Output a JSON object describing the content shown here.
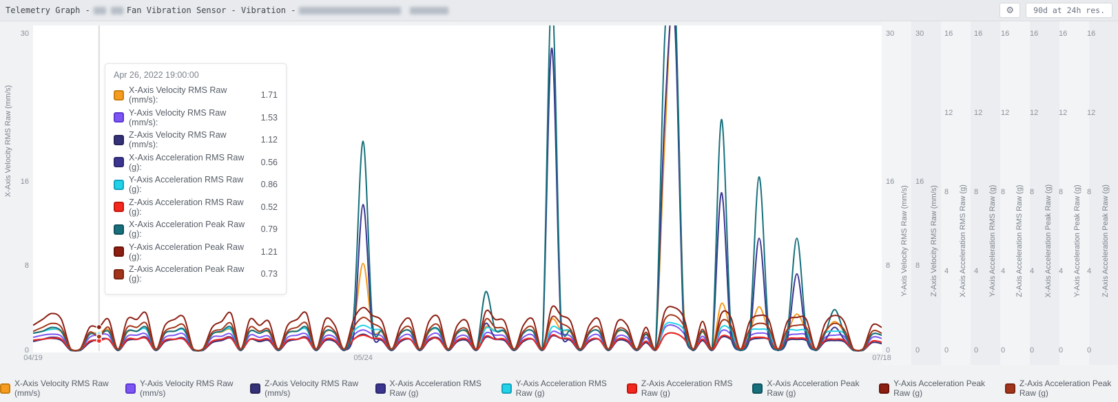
{
  "window": {
    "title_prefix": "Telemetry Graph -",
    "title_sensor": "Fan Vibration Sensor - Vibration -"
  },
  "toolbar": {
    "gear_icon": "⚙",
    "range_label": "90d at 24h res."
  },
  "tooltip": {
    "timestamp": "Apr 26, 2022 19:00:00",
    "hover_day": 7,
    "rows": [
      {
        "label": "X-Axis Velocity RMS Raw (mm/s):",
        "value": "1.71"
      },
      {
        "label": "Y-Axis Velocity RMS Raw (mm/s):",
        "value": "1.53"
      },
      {
        "label": "Z-Axis Velocity RMS Raw (mm/s):",
        "value": "1.12"
      },
      {
        "label": "X-Axis Acceleration RMS Raw (g):",
        "value": "0.56"
      },
      {
        "label": "Y-Axis Acceleration RMS Raw (g):",
        "value": "0.86"
      },
      {
        "label": "Z-Axis Acceleration RMS Raw (g):",
        "value": "0.52"
      },
      {
        "label": "X-Axis Acceleration Peak Raw (g):",
        "value": "0.79"
      },
      {
        "label": "Y-Axis Acceleration Peak Raw (g):",
        "value": "1.21"
      },
      {
        "label": "Z-Axis Acceleration Peak Raw (g):",
        "value": "0.73"
      }
    ]
  },
  "chart_data": {
    "type": "line",
    "range": "90d",
    "resolution": "24h",
    "grid": false,
    "legend_position": "bottom",
    "x_axis": {
      "span_days": 90,
      "ticks": [
        {
          "label": "04/19",
          "day": 0
        },
        {
          "label": "05/24",
          "day": 35
        },
        {
          "label": "07/18",
          "day": 90
        }
      ]
    },
    "left_axis": {
      "label": "X-Axis Velocity RMS Raw (mm/s)",
      "ticks": [
        30,
        16,
        8,
        0
      ],
      "max": 30
    },
    "right_axes": [
      {
        "label": "Y-Axis Velocity RMS Raw (mm/s)",
        "ticks": [
          30,
          16,
          8,
          0
        ],
        "max": 30
      },
      {
        "label": "Z-Axis Velocity RMS Raw (mm/s)",
        "ticks": [
          30,
          16,
          8,
          0
        ],
        "max": 30
      },
      {
        "label": "X-Axis Acceleration RMS Raw (g)",
        "ticks": [
          16,
          12,
          8,
          4,
          0
        ],
        "max": 16
      },
      {
        "label": "Y-Axis Acceleration RMS Raw (g)",
        "ticks": [
          16,
          12,
          8,
          4,
          0
        ],
        "max": 16
      },
      {
        "label": "Z-Axis Acceleration RMS Raw (g)",
        "ticks": [
          16,
          12,
          8,
          4,
          0
        ],
        "max": 16
      },
      {
        "label": "X-Axis Acceleration Peak Raw (g)",
        "ticks": [
          16,
          12,
          8,
          4,
          0
        ],
        "max": 16
      },
      {
        "label": "Y-Axis Acceleration Peak Raw (g)",
        "ticks": [
          16,
          12,
          8,
          4,
          0
        ],
        "max": 16
      },
      {
        "label": "Z-Axis Acceleration Peak Raw (g)",
        "ticks": [
          16,
          12,
          8,
          4,
          0
        ],
        "max": 16
      }
    ],
    "series": [
      {
        "name": "X-Axis Velocity RMS Raw (mm/s)",
        "unit": "mm/s",
        "max": 30,
        "color": "#F59C20",
        "border_color": "#C97E0F",
        "values": [
          1.7,
          1.9,
          2.1,
          1.8,
          0.1,
          0.1,
          1.6,
          1.71,
          2.0,
          0.1,
          1.8,
          1.9,
          2.1,
          0.1,
          1.7,
          1.9,
          2.0,
          0.1,
          0.1,
          1.6,
          1.8,
          2.0,
          0.1,
          1.9,
          1.7,
          1.8,
          0.1,
          1.7,
          1.9,
          2.1,
          0.1,
          1.8,
          1.7,
          0.1,
          2.2,
          8.3,
          2.1,
          1.8,
          0.1,
          1.7,
          1.9,
          0.1,
          1.8,
          2.0,
          0.1,
          1.7,
          1.8,
          0.1,
          2.3,
          1.9,
          1.8,
          0.1,
          1.7,
          1.9,
          0.1,
          3.0,
          2.0,
          1.8,
          0.1,
          1.7,
          1.9,
          0.1,
          1.8,
          1.7,
          0.1,
          1.6,
          0.1,
          20.0,
          34.0,
          4.0,
          0.1,
          1.8,
          0.1,
          4.5,
          2.0,
          0.1,
          1.8,
          4.2,
          1.9,
          0.1,
          1.8,
          3.5,
          1.9,
          0.1,
          1.7,
          2.8,
          1.8,
          0.1,
          0.1,
          1.6,
          1.5
        ]
      },
      {
        "name": "Y-Axis Velocity RMS Raw (mm/s)",
        "unit": "mm/s",
        "max": 30,
        "color": "#7D55F3",
        "border_color": "#5D38D0",
        "values": [
          1.3,
          1.5,
          1.6,
          1.4,
          0.1,
          0.1,
          1.3,
          1.53,
          1.5,
          0.1,
          1.4,
          1.5,
          1.6,
          0.1,
          1.3,
          1.5,
          1.6,
          0.1,
          0.1,
          1.3,
          1.4,
          1.6,
          0.1,
          1.5,
          1.3,
          1.4,
          0.1,
          1.3,
          1.5,
          1.6,
          0.1,
          1.4,
          1.3,
          0.1,
          1.5,
          2.0,
          1.6,
          1.4,
          0.1,
          1.3,
          1.5,
          0.1,
          1.4,
          1.6,
          0.1,
          1.3,
          1.4,
          0.1,
          1.7,
          1.5,
          1.4,
          0.1,
          1.3,
          1.5,
          0.1,
          1.8,
          1.6,
          1.4,
          0.1,
          1.3,
          1.5,
          0.1,
          1.4,
          1.3,
          0.1,
          1.3,
          0.1,
          2.2,
          2.4,
          1.7,
          0.1,
          1.4,
          0.1,
          1.9,
          1.6,
          0.1,
          1.4,
          1.7,
          1.5,
          0.1,
          1.4,
          1.6,
          1.5,
          0.1,
          1.3,
          1.5,
          1.4,
          0.1,
          0.1,
          1.3,
          1.2
        ]
      },
      {
        "name": "Z-Axis Velocity RMS Raw (mm/s)",
        "unit": "mm/s",
        "max": 30,
        "color": "#343178",
        "border_color": "#272459",
        "values": [
          0.9,
          1.1,
          1.2,
          1.0,
          0.05,
          0.05,
          0.8,
          1.12,
          1.1,
          0.05,
          1.0,
          1.1,
          1.2,
          0.05,
          0.9,
          1.1,
          1.1,
          0.05,
          0.05,
          0.8,
          1.0,
          1.2,
          0.05,
          1.1,
          0.9,
          1.0,
          0.05,
          0.9,
          1.1,
          1.2,
          0.05,
          1.0,
          0.9,
          0.05,
          1.1,
          1.6,
          1.2,
          1.0,
          0.05,
          0.9,
          1.1,
          0.05,
          1.0,
          1.2,
          0.05,
          0.9,
          1.0,
          0.05,
          1.3,
          1.1,
          1.0,
          0.05,
          0.9,
          1.1,
          0.05,
          1.4,
          1.2,
          1.0,
          0.05,
          0.9,
          1.1,
          0.05,
          1.0,
          0.9,
          0.05,
          0.8,
          0.05,
          1.5,
          1.7,
          1.2,
          0.05,
          1.0,
          0.05,
          1.3,
          1.1,
          0.05,
          1.0,
          1.2,
          1.1,
          0.05,
          1.0,
          1.1,
          1.0,
          0.05,
          0.9,
          1.0,
          0.9,
          0.05,
          0.05,
          0.8,
          0.7
        ]
      },
      {
        "name": "X-Axis Acceleration RMS Raw (g)",
        "unit": "g",
        "max": 16,
        "color": "#3B3590",
        "border_color": "#2C2770",
        "values": [
          0.55,
          0.6,
          0.7,
          0.6,
          0.05,
          0.05,
          0.5,
          0.56,
          0.6,
          0.05,
          0.6,
          0.6,
          0.7,
          0.05,
          0.55,
          0.6,
          0.65,
          0.05,
          0.05,
          0.5,
          0.6,
          0.7,
          0.05,
          0.6,
          0.55,
          0.6,
          0.05,
          0.55,
          0.6,
          0.7,
          0.05,
          0.6,
          0.55,
          0.05,
          0.8,
          7.4,
          0.9,
          0.6,
          0.05,
          0.55,
          0.6,
          0.05,
          0.6,
          0.65,
          0.05,
          0.55,
          0.6,
          0.05,
          1.4,
          0.65,
          0.6,
          0.05,
          0.55,
          0.6,
          0.05,
          15.3,
          1.0,
          0.6,
          0.05,
          0.55,
          0.6,
          0.05,
          0.6,
          0.55,
          0.05,
          0.5,
          0.05,
          12.0,
          17.0,
          1.2,
          0.05,
          0.6,
          0.05,
          8.0,
          0.7,
          0.05,
          0.6,
          5.7,
          0.65,
          0.05,
          0.6,
          3.9,
          0.65,
          0.05,
          0.55,
          1.2,
          0.6,
          0.05,
          0.05,
          0.5,
          0.45
        ]
      },
      {
        "name": "Y-Axis Acceleration RMS Raw (g)",
        "unit": "g",
        "max": 16,
        "color": "#22D2E9",
        "border_color": "#13A2BC",
        "values": [
          0.9,
          1.0,
          1.1,
          1.0,
          0.05,
          0.05,
          0.85,
          0.86,
          1.0,
          0.05,
          1.0,
          1.0,
          1.1,
          0.05,
          0.9,
          1.0,
          1.05,
          0.05,
          0.05,
          0.85,
          1.0,
          1.1,
          0.05,
          1.0,
          0.9,
          1.0,
          0.05,
          0.9,
          1.0,
          1.1,
          0.05,
          1.0,
          0.9,
          0.05,
          1.0,
          1.3,
          1.1,
          1.0,
          0.05,
          0.9,
          1.0,
          0.05,
          1.0,
          1.05,
          0.05,
          0.9,
          1.0,
          0.05,
          1.15,
          1.0,
          1.0,
          0.05,
          0.9,
          1.0,
          0.05,
          1.2,
          1.05,
          1.0,
          0.05,
          0.9,
          1.0,
          0.05,
          1.0,
          0.9,
          0.05,
          0.85,
          0.05,
          1.3,
          1.4,
          1.1,
          0.05,
          1.0,
          0.05,
          1.2,
          1.05,
          0.05,
          1.0,
          1.1,
          1.0,
          0.05,
          1.0,
          1.05,
          1.0,
          0.05,
          0.9,
          1.0,
          0.9,
          0.05,
          0.05,
          0.85,
          0.8
        ]
      },
      {
        "name": "Z-Axis Acceleration RMS Raw (g)",
        "unit": "g",
        "max": 16,
        "color": "#F4271F",
        "border_color": "#C3170F",
        "values": [
          0.55,
          0.6,
          0.65,
          0.6,
          0.05,
          0.05,
          0.5,
          0.52,
          0.6,
          0.05,
          0.6,
          0.6,
          0.65,
          0.05,
          0.55,
          0.6,
          0.6,
          0.05,
          0.05,
          0.5,
          0.6,
          0.65,
          0.05,
          0.6,
          0.55,
          0.6,
          0.05,
          0.55,
          0.6,
          0.65,
          0.05,
          0.6,
          0.55,
          0.05,
          0.6,
          0.8,
          0.65,
          0.6,
          0.05,
          0.55,
          0.6,
          0.05,
          0.6,
          0.6,
          0.05,
          0.55,
          0.6,
          0.05,
          0.75,
          0.6,
          0.6,
          0.05,
          0.55,
          0.6,
          0.05,
          0.8,
          0.65,
          0.6,
          0.05,
          0.55,
          0.6,
          0.05,
          0.6,
          0.55,
          0.05,
          0.5,
          0.05,
          0.8,
          0.9,
          0.65,
          0.05,
          0.6,
          0.05,
          0.75,
          0.65,
          0.05,
          0.6,
          0.7,
          0.6,
          0.05,
          0.6,
          0.65,
          0.6,
          0.05,
          0.55,
          0.6,
          0.55,
          0.05,
          0.05,
          0.5,
          0.45
        ]
      },
      {
        "name": "X-Axis Acceleration Peak Raw (g)",
        "unit": "g",
        "max": 16,
        "color": "#166F7B",
        "border_color": "#0F525C",
        "values": [
          0.9,
          1.0,
          1.2,
          1.0,
          0.05,
          0.05,
          0.85,
          0.79,
          1.0,
          0.05,
          1.0,
          1.0,
          1.2,
          0.05,
          0.9,
          1.0,
          1.1,
          0.05,
          0.05,
          0.85,
          1.0,
          1.2,
          0.05,
          1.0,
          0.9,
          1.0,
          0.05,
          0.9,
          1.0,
          1.2,
          0.05,
          1.0,
          0.9,
          0.05,
          1.8,
          10.6,
          1.4,
          1.0,
          0.05,
          0.9,
          1.0,
          0.05,
          1.0,
          1.1,
          0.05,
          0.9,
          1.0,
          0.05,
          3.0,
          1.1,
          1.0,
          0.05,
          0.9,
          1.0,
          0.05,
          18.0,
          1.5,
          1.0,
          0.05,
          0.9,
          1.0,
          0.05,
          1.0,
          0.9,
          0.05,
          0.85,
          0.05,
          16.0,
          19.0,
          1.8,
          0.05,
          1.0,
          0.05,
          11.7,
          1.2,
          0.05,
          1.0,
          8.8,
          1.1,
          0.05,
          1.0,
          5.7,
          1.0,
          0.05,
          0.9,
          2.1,
          0.95,
          0.05,
          0.05,
          0.85,
          0.8
        ]
      },
      {
        "name": "Y-Axis Acceleration Peak Raw (g)",
        "unit": "g",
        "max": 16,
        "color": "#8C1E12",
        "border_color": "#6A1309",
        "values": [
          1.3,
          1.6,
          1.9,
          1.6,
          0.1,
          0.1,
          1.2,
          1.21,
          1.6,
          0.1,
          1.6,
          1.6,
          1.9,
          0.1,
          1.3,
          1.6,
          1.7,
          0.1,
          0.1,
          1.2,
          1.5,
          1.9,
          0.1,
          1.6,
          1.3,
          1.5,
          0.1,
          1.3,
          1.6,
          1.9,
          0.1,
          1.6,
          1.3,
          0.1,
          1.6,
          2.2,
          1.8,
          1.5,
          0.1,
          1.3,
          1.6,
          0.1,
          1.5,
          1.7,
          0.1,
          1.3,
          1.5,
          0.1,
          2.0,
          1.6,
          1.5,
          0.1,
          1.3,
          1.6,
          0.1,
          2.2,
          1.8,
          1.5,
          0.1,
          1.3,
          1.6,
          0.1,
          1.5,
          1.3,
          0.1,
          1.2,
          0.1,
          2.0,
          2.2,
          1.7,
          0.1,
          1.5,
          0.1,
          1.9,
          1.7,
          0.1,
          1.5,
          1.8,
          1.6,
          0.1,
          1.5,
          1.7,
          1.6,
          0.1,
          1.4,
          1.8,
          1.5,
          0.1,
          0.1,
          1.3,
          1.2
        ]
      },
      {
        "name": "Z-Axis Acceleration Peak Raw (g)",
        "unit": "g",
        "max": 16,
        "color": "#A23519",
        "border_color": "#7C2410",
        "values": [
          1.0,
          1.2,
          1.4,
          1.2,
          0.1,
          0.1,
          0.95,
          0.73,
          1.2,
          0.1,
          1.2,
          1.2,
          1.4,
          0.1,
          1.0,
          1.2,
          1.3,
          0.1,
          0.1,
          0.95,
          1.1,
          1.4,
          0.1,
          1.2,
          1.0,
          1.1,
          0.1,
          1.0,
          1.2,
          1.4,
          0.1,
          1.2,
          1.0,
          0.1,
          1.2,
          1.7,
          1.4,
          1.1,
          0.1,
          1.0,
          1.2,
          0.1,
          1.1,
          1.3,
          0.1,
          1.0,
          1.1,
          0.1,
          1.6,
          1.2,
          1.1,
          0.1,
          1.0,
          1.2,
          0.1,
          1.7,
          1.4,
          1.1,
          0.1,
          1.0,
          1.2,
          0.1,
          1.1,
          1.0,
          0.1,
          0.95,
          0.1,
          1.6,
          1.8,
          1.3,
          0.1,
          1.1,
          0.1,
          1.5,
          1.3,
          0.1,
          1.1,
          1.4,
          1.2,
          0.1,
          1.1,
          1.3,
          1.2,
          0.1,
          1.0,
          1.4,
          1.1,
          0.1,
          0.1,
          1.0,
          0.9
        ]
      }
    ]
  }
}
